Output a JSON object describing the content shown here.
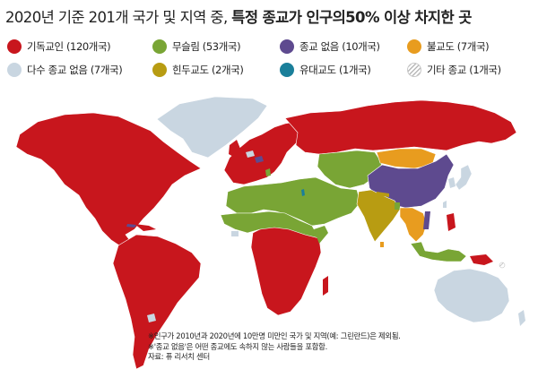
{
  "title": {
    "normal": "2020년 기준 201개 국가 및 지역 중, ",
    "bold": "특정 종교가 인구의50% 이상 차지한 곳"
  },
  "legend": [
    {
      "label": "기독교인 (120개국)",
      "color": "#c8161d",
      "icon": "christian-swatch"
    },
    {
      "label": "무슬림 (53개국)",
      "color": "#79a535",
      "icon": "muslim-swatch"
    },
    {
      "label": "종교 없음 (10개국)",
      "color": "#5e4a8f",
      "icon": "unaffiliated-swatch"
    },
    {
      "label": "불교도 (7개국)",
      "color": "#e89c1f",
      "icon": "buddhist-swatch"
    },
    {
      "label": "다수 종교 없음 (7개국)",
      "color": "#c9d6e1",
      "icon": "no-majority-swatch"
    },
    {
      "label": "힌두교도 (2개국)",
      "color": "#b89c12",
      "icon": "hindu-swatch"
    },
    {
      "label": "유대교도 (1개국)",
      "color": "#1a7f9a",
      "icon": "jewish-swatch"
    },
    {
      "label": "기타 종교 (1개국)",
      "color": "hatch",
      "icon": "other-religion-swatch"
    }
  ],
  "notes": [
    "※인구가 2010년과 2020년에 10만명 미만인 국가 및 지역(예: 그린란드)은 제외됨.",
    "※'종교 없음'은 어떤 종교에도 속하지 않는 사람들을 포함함.",
    "자료: 퓨 리서치 센터"
  ]
}
